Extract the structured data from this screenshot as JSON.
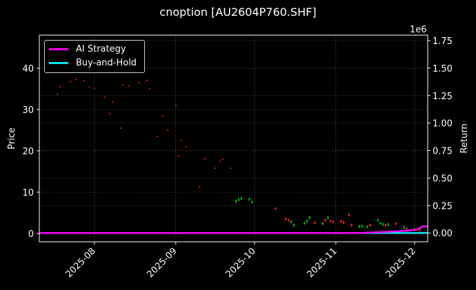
{
  "title": "cnoption [AU2604P760.SHF]",
  "legend": [
    {
      "label": "AI Strategy",
      "color": "#ff00ff"
    },
    {
      "label": "Buy-and-Hold",
      "color": "#00e5ee"
    }
  ],
  "axes": {
    "left_label": "Price",
    "right_label": "Return",
    "right_offset": "1e6",
    "left_ticks": [
      "0",
      "10",
      "20",
      "30",
      "40"
    ],
    "right_ticks": [
      "0.00",
      "0.25",
      "0.50",
      "0.75",
      "1.00",
      "1.25",
      "1.50",
      "1.75"
    ],
    "x_ticks": [
      "2025-08",
      "2025-09",
      "2025-10",
      "2025-11",
      "2025-12"
    ]
  },
  "chart_data": {
    "type": "line",
    "title": "cnoption [AU2604P760.SHF]",
    "xlabel": "",
    "ylabel": "Price",
    "y2label": "Return (1e6)",
    "ylim": [
      -2,
      48
    ],
    "y2lim": [
      -0.08,
      1.8
    ],
    "xlim": [
      "2025-07-11",
      "2025-12-06"
    ],
    "grid": true,
    "legend_position": "upper left",
    "x_ticks": [
      "2025-08",
      "2025-09",
      "2025-10",
      "2025-11",
      "2025-12"
    ],
    "candles": [
      {
        "date": "2025-07-18",
        "price": 33.7,
        "dir": "up"
      },
      {
        "date": "2025-07-19",
        "price": 35.5,
        "dir": "down"
      },
      {
        "date": "2025-07-23",
        "price": 36.8,
        "dir": "down"
      },
      {
        "date": "2025-07-25",
        "price": 37.3,
        "dir": "down"
      },
      {
        "date": "2025-07-28",
        "price": 37.0,
        "dir": "down"
      },
      {
        "date": "2025-07-30",
        "price": 35.5,
        "dir": "down"
      },
      {
        "date": "2025-08-01",
        "price": 35.2,
        "dir": "down"
      },
      {
        "date": "2025-08-05",
        "price": 33.0,
        "dir": "down"
      },
      {
        "date": "2025-08-07",
        "price": 29.0,
        "dir": "down"
      },
      {
        "date": "2025-08-08",
        "price": 31.8,
        "dir": "down"
      },
      {
        "date": "2025-08-11",
        "price": 25.5,
        "dir": "down"
      },
      {
        "date": "2025-08-12",
        "price": 36.0,
        "dir": "down"
      },
      {
        "date": "2025-08-14",
        "price": 35.7,
        "dir": "down"
      },
      {
        "date": "2025-08-18",
        "price": 36.5,
        "dir": "down"
      },
      {
        "date": "2025-08-21",
        "price": 37.0,
        "dir": "down"
      },
      {
        "date": "2025-08-22",
        "price": 35.0,
        "dir": "down"
      },
      {
        "date": "2025-08-25",
        "price": 23.5,
        "dir": "down"
      },
      {
        "date": "2025-08-27",
        "price": 28.5,
        "dir": "down"
      },
      {
        "date": "2025-08-29",
        "price": 25.0,
        "dir": "down"
      },
      {
        "date": "2025-09-01",
        "price": 31.0,
        "dir": "down"
      },
      {
        "date": "2025-09-02",
        "price": 18.7,
        "dir": "down"
      },
      {
        "date": "2025-09-03",
        "price": 22.5,
        "dir": "down"
      },
      {
        "date": "2025-09-05",
        "price": 21.0,
        "dir": "down"
      },
      {
        "date": "2025-09-10",
        "price": 11.3,
        "dir": "down"
      },
      {
        "date": "2025-09-12",
        "price": 18.0,
        "dir": "down"
      },
      {
        "date": "2025-09-16",
        "price": 15.8,
        "dir": "down"
      },
      {
        "date": "2025-09-18",
        "price": 17.5,
        "dir": "down"
      },
      {
        "date": "2025-09-19",
        "price": 18.0,
        "dir": "down"
      },
      {
        "date": "2025-09-22",
        "price": 15.8,
        "dir": "down"
      },
      {
        "date": "2025-09-24",
        "price": 7.8,
        "dir": "up"
      },
      {
        "date": "2025-09-25",
        "price": 8.2,
        "dir": "up"
      },
      {
        "date": "2025-09-26",
        "price": 8.5,
        "dir": "up"
      },
      {
        "date": "2025-09-29",
        "price": 8.3,
        "dir": "up"
      },
      {
        "date": "2025-09-30",
        "price": 7.6,
        "dir": "up"
      },
      {
        "date": "2025-10-09",
        "price": 6.0,
        "dir": "down"
      },
      {
        "date": "2025-10-13",
        "price": 3.5,
        "dir": "down"
      },
      {
        "date": "2025-10-14",
        "price": 3.2,
        "dir": "down"
      },
      {
        "date": "2025-10-15",
        "price": 2.8,
        "dir": "up"
      },
      {
        "date": "2025-10-16",
        "price": 2.0,
        "dir": "up"
      },
      {
        "date": "2025-10-20",
        "price": 2.5,
        "dir": "up"
      },
      {
        "date": "2025-10-21",
        "price": 3.0,
        "dir": "up"
      },
      {
        "date": "2025-10-22",
        "price": 3.8,
        "dir": "up"
      },
      {
        "date": "2025-10-24",
        "price": 2.6,
        "dir": "down"
      },
      {
        "date": "2025-10-27",
        "price": 2.4,
        "dir": "up"
      },
      {
        "date": "2025-10-28",
        "price": 3.2,
        "dir": "down"
      },
      {
        "date": "2025-10-29",
        "price": 3.8,
        "dir": "up"
      },
      {
        "date": "2025-10-30",
        "price": 3.0,
        "dir": "down"
      },
      {
        "date": "2025-10-31",
        "price": 2.8,
        "dir": "down"
      },
      {
        "date": "2025-11-03",
        "price": 3.0,
        "dir": "down"
      },
      {
        "date": "2025-11-04",
        "price": 2.7,
        "dir": "down"
      },
      {
        "date": "2025-11-06",
        "price": 4.5,
        "dir": "down"
      },
      {
        "date": "2025-11-07",
        "price": 2.0,
        "dir": "down"
      },
      {
        "date": "2025-11-10",
        "price": 1.7,
        "dir": "up"
      },
      {
        "date": "2025-11-11",
        "price": 1.8,
        "dir": "up"
      },
      {
        "date": "2025-11-13",
        "price": 1.6,
        "dir": "up"
      },
      {
        "date": "2025-11-14",
        "price": 2.0,
        "dir": "down"
      },
      {
        "date": "2025-11-17",
        "price": 3.2,
        "dir": "up"
      },
      {
        "date": "2025-11-18",
        "price": 2.5,
        "dir": "up"
      },
      {
        "date": "2025-11-19",
        "price": 2.2,
        "dir": "up"
      },
      {
        "date": "2025-11-20",
        "price": 2.0,
        "dir": "down"
      },
      {
        "date": "2025-11-21",
        "price": 2.2,
        "dir": "up"
      },
      {
        "date": "2025-11-24",
        "price": 2.4,
        "dir": "down"
      },
      {
        "date": "2025-11-27",
        "price": 1.5,
        "dir": "up"
      },
      {
        "date": "2025-11-28",
        "price": 1.2,
        "dir": "down"
      },
      {
        "date": "2025-12-01",
        "price": 1.0,
        "dir": "up"
      },
      {
        "date": "2025-12-03",
        "price": 0.8,
        "dir": "down"
      }
    ],
    "series": [
      {
        "name": "AI Strategy",
        "color": "#ff00ff",
        "axis": "right",
        "x": [
          "2025-07-11",
          "2025-11-10",
          "2025-11-20",
          "2025-11-28",
          "2025-12-02",
          "2025-12-04",
          "2025-12-06"
        ],
        "values": [
          0,
          0,
          0.01,
          0.02,
          0.03,
          0.06,
          0.06
        ]
      },
      {
        "name": "Buy-and-Hold",
        "color": "#00e5ee",
        "axis": "right",
        "x": [
          "2025-07-11",
          "2025-12-06"
        ],
        "values": [
          0,
          0
        ]
      }
    ]
  }
}
